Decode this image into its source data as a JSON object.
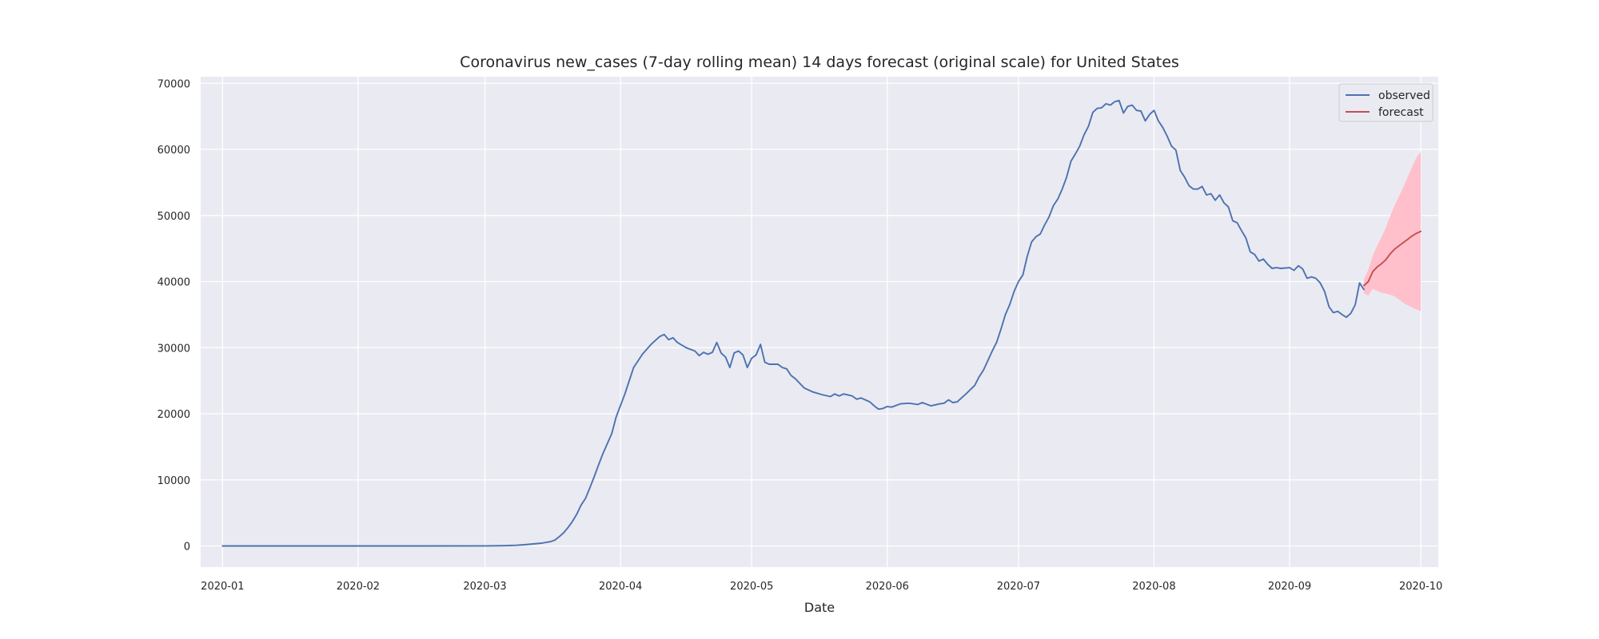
{
  "chart_data": {
    "type": "line",
    "title": "Coronavirus new_cases (7-day rolling mean) 14 days forecast (original scale) for United States",
    "xlabel": "Date",
    "ylabel": "",
    "x_range": [
      "2019-12-27",
      "2020-10-05"
    ],
    "ylim": [
      -3200,
      71000
    ],
    "x_ticks": [
      "2020-01-01",
      "2020-02-01",
      "2020-03-01",
      "2020-04-01",
      "2020-05-01",
      "2020-06-01",
      "2020-07-01",
      "2020-08-01",
      "2020-09-01",
      "2020-10-01"
    ],
    "x_tick_labels": [
      "2020-01",
      "2020-02",
      "2020-03",
      "2020-04",
      "2020-05",
      "2020-06",
      "2020-07",
      "2020-08",
      "2020-09",
      "2020-10"
    ],
    "y_ticks": [
      0,
      10000,
      20000,
      30000,
      40000,
      50000,
      60000,
      70000
    ],
    "y_tick_labels": [
      "0",
      "10000",
      "20000",
      "30000",
      "40000",
      "50000",
      "60000",
      "70000"
    ],
    "grid": true,
    "background": "#eaeaf2",
    "legend": {
      "placement": "top-right",
      "entries": [
        "observed",
        "forecast"
      ]
    },
    "colors": {
      "observed": "#4c72b0",
      "forecast": "#c44e52",
      "interval": "#ffc0cb"
    },
    "series": [
      {
        "name": "observed",
        "points": [
          [
            "2020-01-01",
            0
          ],
          [
            "2020-02-01",
            0
          ],
          [
            "2020-02-15",
            0
          ],
          [
            "2020-03-01",
            10
          ],
          [
            "2020-03-05",
            40
          ],
          [
            "2020-03-08",
            100
          ],
          [
            "2020-03-10",
            180
          ],
          [
            "2020-03-12",
            300
          ],
          [
            "2020-03-14",
            420
          ],
          [
            "2020-03-16",
            650
          ],
          [
            "2020-03-17",
            900
          ],
          [
            "2020-03-18",
            1400
          ],
          [
            "2020-03-19",
            2000
          ],
          [
            "2020-03-20",
            2800
          ],
          [
            "2020-03-21",
            3700
          ],
          [
            "2020-03-22",
            4800
          ],
          [
            "2020-03-23",
            6200
          ],
          [
            "2020-03-24",
            7200
          ],
          [
            "2020-03-25",
            8800
          ],
          [
            "2020-03-26",
            10500
          ],
          [
            "2020-03-27",
            12300
          ],
          [
            "2020-03-28",
            14000
          ],
          [
            "2020-03-29",
            15500
          ],
          [
            "2020-03-30",
            17000
          ],
          [
            "2020-03-31",
            19500
          ],
          [
            "2020-04-02",
            23000
          ],
          [
            "2020-04-04",
            27000
          ],
          [
            "2020-04-06",
            29000
          ],
          [
            "2020-04-08",
            30500
          ],
          [
            "2020-04-10",
            31700
          ],
          [
            "2020-04-11",
            32000
          ],
          [
            "2020-04-12",
            31200
          ],
          [
            "2020-04-13",
            31500
          ],
          [
            "2020-04-14",
            30800
          ],
          [
            "2020-04-16",
            30000
          ],
          [
            "2020-04-18",
            29500
          ],
          [
            "2020-04-19",
            28800
          ],
          [
            "2020-04-20",
            29300
          ],
          [
            "2020-04-21",
            29000
          ],
          [
            "2020-04-22",
            29300
          ],
          [
            "2020-04-23",
            30800
          ],
          [
            "2020-04-24",
            29200
          ],
          [
            "2020-04-25",
            28600
          ],
          [
            "2020-04-26",
            27000
          ],
          [
            "2020-04-27",
            29200
          ],
          [
            "2020-04-28",
            29500
          ],
          [
            "2020-04-29",
            28900
          ],
          [
            "2020-04-30",
            27000
          ],
          [
            "2020-05-01",
            28400
          ],
          [
            "2020-05-02",
            28900
          ],
          [
            "2020-05-03",
            30500
          ],
          [
            "2020-05-04",
            27800
          ],
          [
            "2020-05-05",
            27500
          ],
          [
            "2020-05-07",
            27500
          ],
          [
            "2020-05-08",
            27000
          ],
          [
            "2020-05-09",
            26800
          ],
          [
            "2020-05-10",
            25800
          ],
          [
            "2020-05-11",
            25300
          ],
          [
            "2020-05-12",
            24600
          ],
          [
            "2020-05-13",
            23900
          ],
          [
            "2020-05-15",
            23300
          ],
          [
            "2020-05-17",
            22900
          ],
          [
            "2020-05-19",
            22600
          ],
          [
            "2020-05-20",
            23000
          ],
          [
            "2020-05-21",
            22700
          ],
          [
            "2020-05-22",
            23000
          ],
          [
            "2020-05-24",
            22700
          ],
          [
            "2020-05-25",
            22200
          ],
          [
            "2020-05-26",
            22400
          ],
          [
            "2020-05-28",
            21800
          ],
          [
            "2020-05-29",
            21200
          ],
          [
            "2020-05-30",
            20700
          ],
          [
            "2020-05-31",
            20800
          ],
          [
            "2020-06-01",
            21100
          ],
          [
            "2020-06-02",
            21000
          ],
          [
            "2020-06-04",
            21500
          ],
          [
            "2020-06-06",
            21600
          ],
          [
            "2020-06-08",
            21400
          ],
          [
            "2020-06-09",
            21700
          ],
          [
            "2020-06-11",
            21200
          ],
          [
            "2020-06-13",
            21500
          ],
          [
            "2020-06-14",
            21600
          ],
          [
            "2020-06-15",
            22100
          ],
          [
            "2020-06-16",
            21700
          ],
          [
            "2020-06-17",
            21800
          ],
          [
            "2020-06-19",
            23000
          ],
          [
            "2020-06-21",
            24300
          ],
          [
            "2020-06-22",
            25600
          ],
          [
            "2020-06-23",
            26600
          ],
          [
            "2020-06-25",
            29500
          ],
          [
            "2020-06-26",
            30800
          ],
          [
            "2020-06-27",
            32800
          ],
          [
            "2020-06-28",
            35000
          ],
          [
            "2020-06-29",
            36500
          ],
          [
            "2020-06-30",
            38500
          ],
          [
            "2020-07-01",
            40000
          ],
          [
            "2020-07-02",
            41000
          ],
          [
            "2020-07-03",
            43800
          ],
          [
            "2020-07-04",
            46000
          ],
          [
            "2020-07-05",
            46800
          ],
          [
            "2020-07-06",
            47200
          ],
          [
            "2020-07-07",
            48600
          ],
          [
            "2020-07-08",
            49800
          ],
          [
            "2020-07-09",
            51500
          ],
          [
            "2020-07-10",
            52500
          ],
          [
            "2020-07-11",
            54000
          ],
          [
            "2020-07-12",
            55800
          ],
          [
            "2020-07-13",
            58200
          ],
          [
            "2020-07-14",
            59300
          ],
          [
            "2020-07-15",
            60500
          ],
          [
            "2020-07-16",
            62200
          ],
          [
            "2020-07-17",
            63500
          ],
          [
            "2020-07-18",
            65600
          ],
          [
            "2020-07-19",
            66200
          ],
          [
            "2020-07-20",
            66300
          ],
          [
            "2020-07-21",
            66900
          ],
          [
            "2020-07-22",
            66700
          ],
          [
            "2020-07-23",
            67200
          ],
          [
            "2020-07-24",
            67400
          ],
          [
            "2020-07-25",
            65500
          ],
          [
            "2020-07-26",
            66500
          ],
          [
            "2020-07-27",
            66700
          ],
          [
            "2020-07-28",
            65900
          ],
          [
            "2020-07-29",
            65800
          ],
          [
            "2020-07-30",
            64300
          ],
          [
            "2020-07-31",
            65300
          ],
          [
            "2020-08-01",
            65900
          ],
          [
            "2020-08-02",
            64300
          ],
          [
            "2020-08-03",
            63300
          ],
          [
            "2020-08-04",
            62000
          ],
          [
            "2020-08-05",
            60500
          ],
          [
            "2020-08-06",
            59900
          ],
          [
            "2020-08-07",
            56800
          ],
          [
            "2020-08-08",
            55800
          ],
          [
            "2020-08-09",
            54500
          ],
          [
            "2020-08-10",
            54000
          ],
          [
            "2020-08-11",
            54000
          ],
          [
            "2020-08-12",
            54400
          ],
          [
            "2020-08-13",
            53100
          ],
          [
            "2020-08-14",
            53300
          ],
          [
            "2020-08-15",
            52300
          ],
          [
            "2020-08-16",
            53100
          ],
          [
            "2020-08-17",
            51900
          ],
          [
            "2020-08-18",
            51300
          ],
          [
            "2020-08-19",
            49200
          ],
          [
            "2020-08-20",
            48900
          ],
          [
            "2020-08-21",
            47700
          ],
          [
            "2020-08-22",
            46600
          ],
          [
            "2020-08-23",
            44500
          ],
          [
            "2020-08-24",
            44100
          ],
          [
            "2020-08-25",
            43100
          ],
          [
            "2020-08-26",
            43400
          ],
          [
            "2020-08-27",
            42600
          ],
          [
            "2020-08-28",
            42000
          ],
          [
            "2020-08-29",
            42100
          ],
          [
            "2020-08-30",
            42000
          ],
          [
            "2020-09-01",
            42100
          ],
          [
            "2020-09-02",
            41700
          ],
          [
            "2020-09-03",
            42400
          ],
          [
            "2020-09-04",
            41900
          ],
          [
            "2020-09-05",
            40500
          ],
          [
            "2020-09-06",
            40700
          ],
          [
            "2020-09-07",
            40500
          ],
          [
            "2020-09-08",
            39800
          ],
          [
            "2020-09-09",
            38500
          ],
          [
            "2020-09-10",
            36200
          ],
          [
            "2020-09-11",
            35300
          ],
          [
            "2020-09-12",
            35500
          ],
          [
            "2020-09-13",
            35000
          ],
          [
            "2020-09-14",
            34600
          ],
          [
            "2020-09-15",
            35200
          ],
          [
            "2020-09-16",
            36500
          ],
          [
            "2020-09-17",
            39800
          ],
          [
            "2020-09-18",
            38800
          ]
        ]
      },
      {
        "name": "forecast",
        "points": [
          [
            "2020-09-18",
            39400
          ],
          [
            "2020-09-19",
            40000
          ],
          [
            "2020-09-20",
            41500
          ],
          [
            "2020-09-21",
            42200
          ],
          [
            "2020-09-22",
            42700
          ],
          [
            "2020-09-23",
            43300
          ],
          [
            "2020-09-24",
            44200
          ],
          [
            "2020-09-25",
            44900
          ],
          [
            "2020-09-26",
            45400
          ],
          [
            "2020-09-27",
            45900
          ],
          [
            "2020-09-28",
            46400
          ],
          [
            "2020-09-29",
            46900
          ],
          [
            "2020-09-30",
            47300
          ],
          [
            "2020-10-01",
            47600
          ]
        ],
        "interval_lower": [
          38200,
          37900,
          38900,
          38600,
          38300,
          38200,
          38000,
          37800,
          37300,
          36800,
          36400,
          36100,
          35800,
          35500
        ],
        "interval_upper": [
          40400,
          41800,
          43900,
          45400,
          46700,
          48200,
          49900,
          51500,
          52900,
          54300,
          55800,
          57300,
          58800,
          59600
        ]
      }
    ]
  }
}
